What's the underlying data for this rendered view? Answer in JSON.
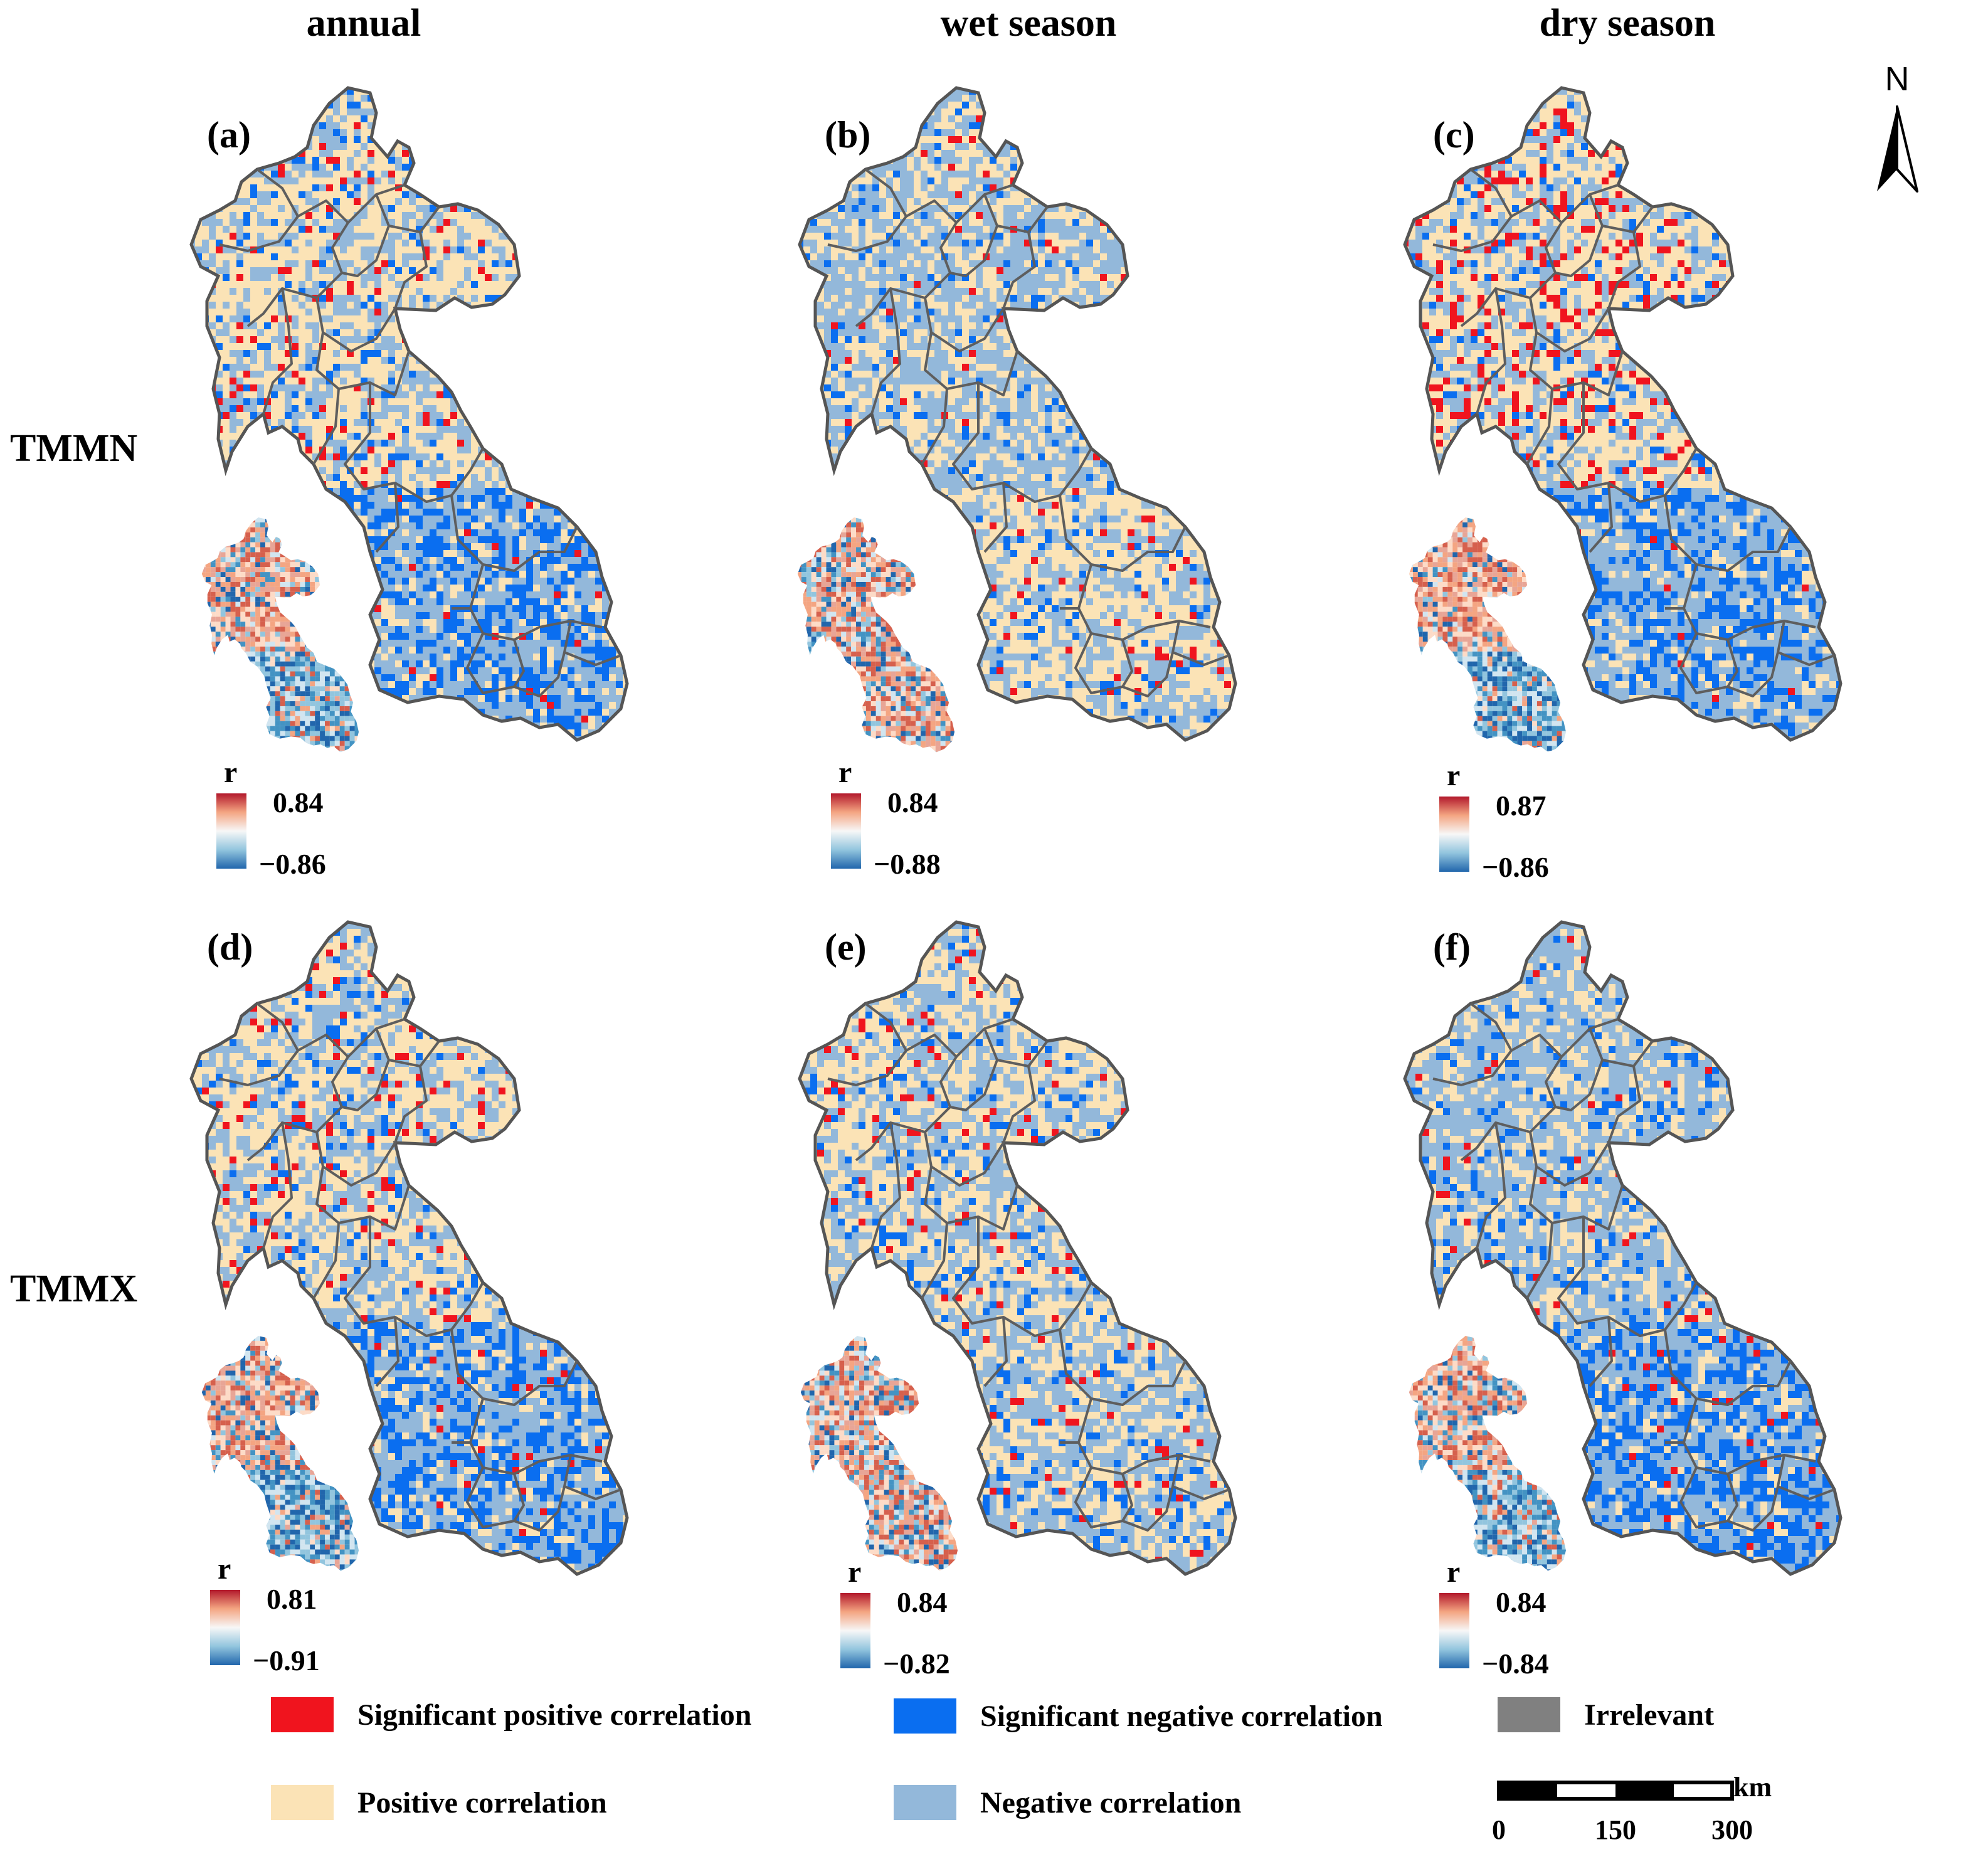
{
  "columns": [
    {
      "title": "annual"
    },
    {
      "title": "wet season"
    },
    {
      "title": "dry season"
    }
  ],
  "rows": [
    {
      "title": "TMMN"
    },
    {
      "title": "TMMX"
    }
  ],
  "panels": [
    {
      "id": "a",
      "label": "(a)",
      "colorbar": {
        "title": "r",
        "max": "0.84",
        "min": "−0.86"
      },
      "tendency": "annual-min"
    },
    {
      "id": "b",
      "label": "(b)",
      "colorbar": {
        "title": "r",
        "max": "0.84",
        "min": "−0.88"
      },
      "tendency": "wet-min"
    },
    {
      "id": "c",
      "label": "(c)",
      "colorbar": {
        "title": "r",
        "max": "0.87",
        "min": "−0.86"
      },
      "tendency": "dry-min"
    },
    {
      "id": "d",
      "label": "(d)",
      "colorbar": {
        "title": "r",
        "max": "0.81",
        "min": "−0.91"
      },
      "tendency": "annual-max"
    },
    {
      "id": "e",
      "label": "(e)",
      "colorbar": {
        "title": "r",
        "max": "0.84",
        "min": "−0.82"
      },
      "tendency": "wet-max"
    },
    {
      "id": "f",
      "label": "(f)",
      "colorbar": {
        "title": "r",
        "max": "0.84",
        "min": "−0.84"
      },
      "tendency": "dry-max"
    }
  ],
  "legend": [
    {
      "label": "Significant positive correlation",
      "color": "#f0141e"
    },
    {
      "label": "Significant negative correlation",
      "color": "#0a6ef0"
    },
    {
      "label": "Irrelevant",
      "color": "#808080"
    },
    {
      "label": "Positive correlation",
      "color": "#fbe3b6"
    },
    {
      "label": "Negative correlation",
      "color": "#93b8da"
    }
  ],
  "north_arrow": {
    "label": "N"
  },
  "scale_bar": {
    "unit": "km",
    "ticks": [
      "0",
      "150",
      "300"
    ]
  },
  "colors": {
    "border": "#6a6a6a",
    "colorbar_top": "#b2182b",
    "colorbar_mid": "#f7f7f7",
    "colorbar_bottom": "#2166ac"
  }
}
